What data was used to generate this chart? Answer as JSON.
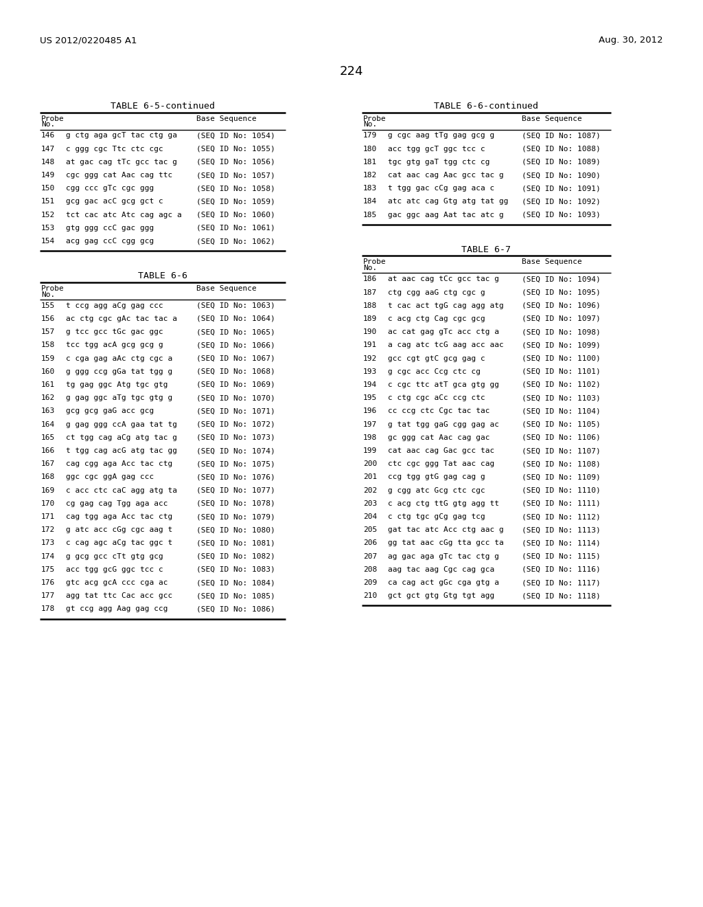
{
  "page_number": "224",
  "patent_number": "US 2012/0220485 A1",
  "patent_date": "Aug. 30, 2012",
  "background_color": "#ffffff",
  "tables_left": [
    {
      "title": "TABLE 6-5-continued",
      "rows": [
        [
          "146",
          "g ctg aga gcT tac ctg ga",
          "(SEQ ID No: 1054)"
        ],
        [
          "147",
          "c ggg cgc Ttc ctc cgc",
          "(SEQ ID No: 1055)"
        ],
        [
          "148",
          "at gac cag tTc gcc tac g",
          "(SEQ ID No: 1056)"
        ],
        [
          "149",
          "cgc ggg cat Aac cag ttc",
          "(SEQ ID No: 1057)"
        ],
        [
          "150",
          "cgg ccc gTc cgc ggg",
          "(SEQ ID No: 1058)"
        ],
        [
          "151",
          "gcg gac acC gcg gct c",
          "(SEQ ID No: 1059)"
        ],
        [
          "152",
          "tct cac atc Atc cag agc a",
          "(SEQ ID No: 1060)"
        ],
        [
          "153",
          "gtg ggg ccC gac ggg",
          "(SEQ ID No: 1061)"
        ],
        [
          "154",
          "acg gag ccC cgg gcg",
          "(SEQ ID No: 1062)"
        ]
      ]
    },
    {
      "title": "TABLE 6-6",
      "rows": [
        [
          "155",
          "t ccg agg aCg gag ccc",
          "(SEQ ID No: 1063)"
        ],
        [
          "156",
          "ac ctg cgc gAc tac tac a",
          "(SEQ ID No: 1064)"
        ],
        [
          "157",
          "g tcc gcc tGc gac ggc",
          "(SEQ ID No: 1065)"
        ],
        [
          "158",
          "tcc tgg acA gcg gcg g",
          "(SEQ ID No: 1066)"
        ],
        [
          "159",
          "c cga gag aAc ctg cgc a",
          "(SEQ ID No: 1067)"
        ],
        [
          "160",
          "g ggg ccg gGa tat tgg g",
          "(SEQ ID No: 1068)"
        ],
        [
          "161",
          "tg gag ggc Atg tgc gtg",
          "(SEQ ID No: 1069)"
        ],
        [
          "162",
          "g gag ggc aTg tgc gtg g",
          "(SEQ ID No: 1070)"
        ],
        [
          "163",
          "gcg gcg gaG acc gcg",
          "(SEQ ID No: 1071)"
        ],
        [
          "164",
          "g gag ggg ccA gaa tat tg",
          "(SEQ ID No: 1072)"
        ],
        [
          "165",
          "ct tgg cag aCg atg tac g",
          "(SEQ ID No: 1073)"
        ],
        [
          "166",
          "t tgg cag acG atg tac gg",
          "(SEQ ID No: 1074)"
        ],
        [
          "167",
          "cag cgg aga Acc tac ctg",
          "(SEQ ID No: 1075)"
        ],
        [
          "168",
          "ggc cgc ggA gag ccc",
          "(SEQ ID No: 1076)"
        ],
        [
          "169",
          "c acc ctc caC agg atg ta",
          "(SEQ ID No: 1077)"
        ],
        [
          "170",
          "cg gag cag Tgg aga acc",
          "(SEQ ID No: 1078)"
        ],
        [
          "171",
          "cag tgg aga Acc tac ctg",
          "(SEQ ID No: 1079)"
        ],
        [
          "172",
          "g atc acc cGg cgc aag t",
          "(SEQ ID No: 1080)"
        ],
        [
          "173",
          "c cag agc aCg tac ggc t",
          "(SEQ ID No: 1081)"
        ],
        [
          "174",
          "g gcg gcc cTt gtg gcg",
          "(SEQ ID No: 1082)"
        ],
        [
          "175",
          "acc tgg gcG ggc tcc c",
          "(SEQ ID No: 1083)"
        ],
        [
          "176",
          "gtc acg gcA ccc cga ac",
          "(SEQ ID No: 1084)"
        ],
        [
          "177",
          "agg tat ttc Cac acc gcc",
          "(SEQ ID No: 1085)"
        ],
        [
          "178",
          "gt ccg agg Aag gag ccg",
          "(SEQ ID No: 1086)"
        ]
      ]
    }
  ],
  "tables_right": [
    {
      "title": "TABLE 6-6-continued",
      "rows": [
        [
          "179",
          "g cgc aag tTg gag gcg g",
          "(SEQ ID No: 1087)"
        ],
        [
          "180",
          "acc tgg gcT ggc tcc c",
          "(SEQ ID No: 1088)"
        ],
        [
          "181",
          "tgc gtg gaT tgg ctc cg",
          "(SEQ ID No: 1089)"
        ],
        [
          "182",
          "cat aac cag Aac gcc tac g",
          "(SEQ ID No: 1090)"
        ],
        [
          "183",
          "t tgg gac cCg gag aca c",
          "(SEQ ID No: 1091)"
        ],
        [
          "184",
          "atc atc cag Gtg atg tat gg",
          "(SEQ ID No: 1092)"
        ],
        [
          "185",
          "gac ggc aag Aat tac atc g",
          "(SEQ ID No: 1093)"
        ]
      ]
    },
    {
      "title": "TABLE 6-7",
      "rows": [
        [
          "186",
          "at aac cag tCc gcc tac g",
          "(SEQ ID No: 1094)"
        ],
        [
          "187",
          "ctg cgg aaG ctg cgc g",
          "(SEQ ID No: 1095)"
        ],
        [
          "188",
          "t cac act tgG cag agg atg",
          "(SEQ ID No: 1096)"
        ],
        [
          "189",
          "c acg ctg Cag cgc gcg",
          "(SEQ ID No: 1097)"
        ],
        [
          "190",
          "ac cat gag gTc acc ctg a",
          "(SEQ ID No: 1098)"
        ],
        [
          "191",
          "a cag atc tcG aag acc aac",
          "(SEQ ID No: 1099)"
        ],
        [
          "192",
          "gcc cgt gtC gcg gag c",
          "(SEQ ID No: 1100)"
        ],
        [
          "193",
          "g cgc acc Ccg ctc cg",
          "(SEQ ID No: 1101)"
        ],
        [
          "194",
          "c cgc ttc atT gca gtg gg",
          "(SEQ ID No: 1102)"
        ],
        [
          "195",
          "c ctg cgc aCc ccg ctc",
          "(SEQ ID No: 1103)"
        ],
        [
          "196",
          "cc ccg ctc Cgc tac tac",
          "(SEQ ID No: 1104)"
        ],
        [
          "197",
          "g tat tgg gaG cgg gag ac",
          "(SEQ ID No: 1105)"
        ],
        [
          "198",
          "gc ggg cat Aac cag gac",
          "(SEQ ID No: 1106)"
        ],
        [
          "199",
          "cat aac cag Gac gcc tac",
          "(SEQ ID No: 1107)"
        ],
        [
          "200",
          "ctc cgc ggg Tat aac cag",
          "(SEQ ID No: 1108)"
        ],
        [
          "201",
          "ccg tgg gtG gag cag g",
          "(SEQ ID No: 1109)"
        ],
        [
          "202",
          "g cgg atc Gcg ctc cgc",
          "(SEQ ID No: 1110)"
        ],
        [
          "203",
          "c acg ctg ttG gtg agg tt",
          "(SEQ ID No: 1111)"
        ],
        [
          "204",
          "c ctg tgc gCg gag tcg",
          "(SEQ ID No: 1112)"
        ],
        [
          "205",
          "gat tac atc Acc ctg aac g",
          "(SEQ ID No: 1113)"
        ],
        [
          "206",
          "gg tat aac cGg tta gcc ta",
          "(SEQ ID No: 1114)"
        ],
        [
          "207",
          "ag gac aga gTc tac ctg g",
          "(SEQ ID No: 1115)"
        ],
        [
          "208",
          "aag tac aag Cgc cag gca",
          "(SEQ ID No: 1116)"
        ],
        [
          "209",
          "ca cag act gGc cga gtg a",
          "(SEQ ID No: 1117)"
        ],
        [
          "210",
          "gct gct gtg Gtg tgt agg",
          "(SEQ ID No: 1118)"
        ]
      ]
    }
  ]
}
